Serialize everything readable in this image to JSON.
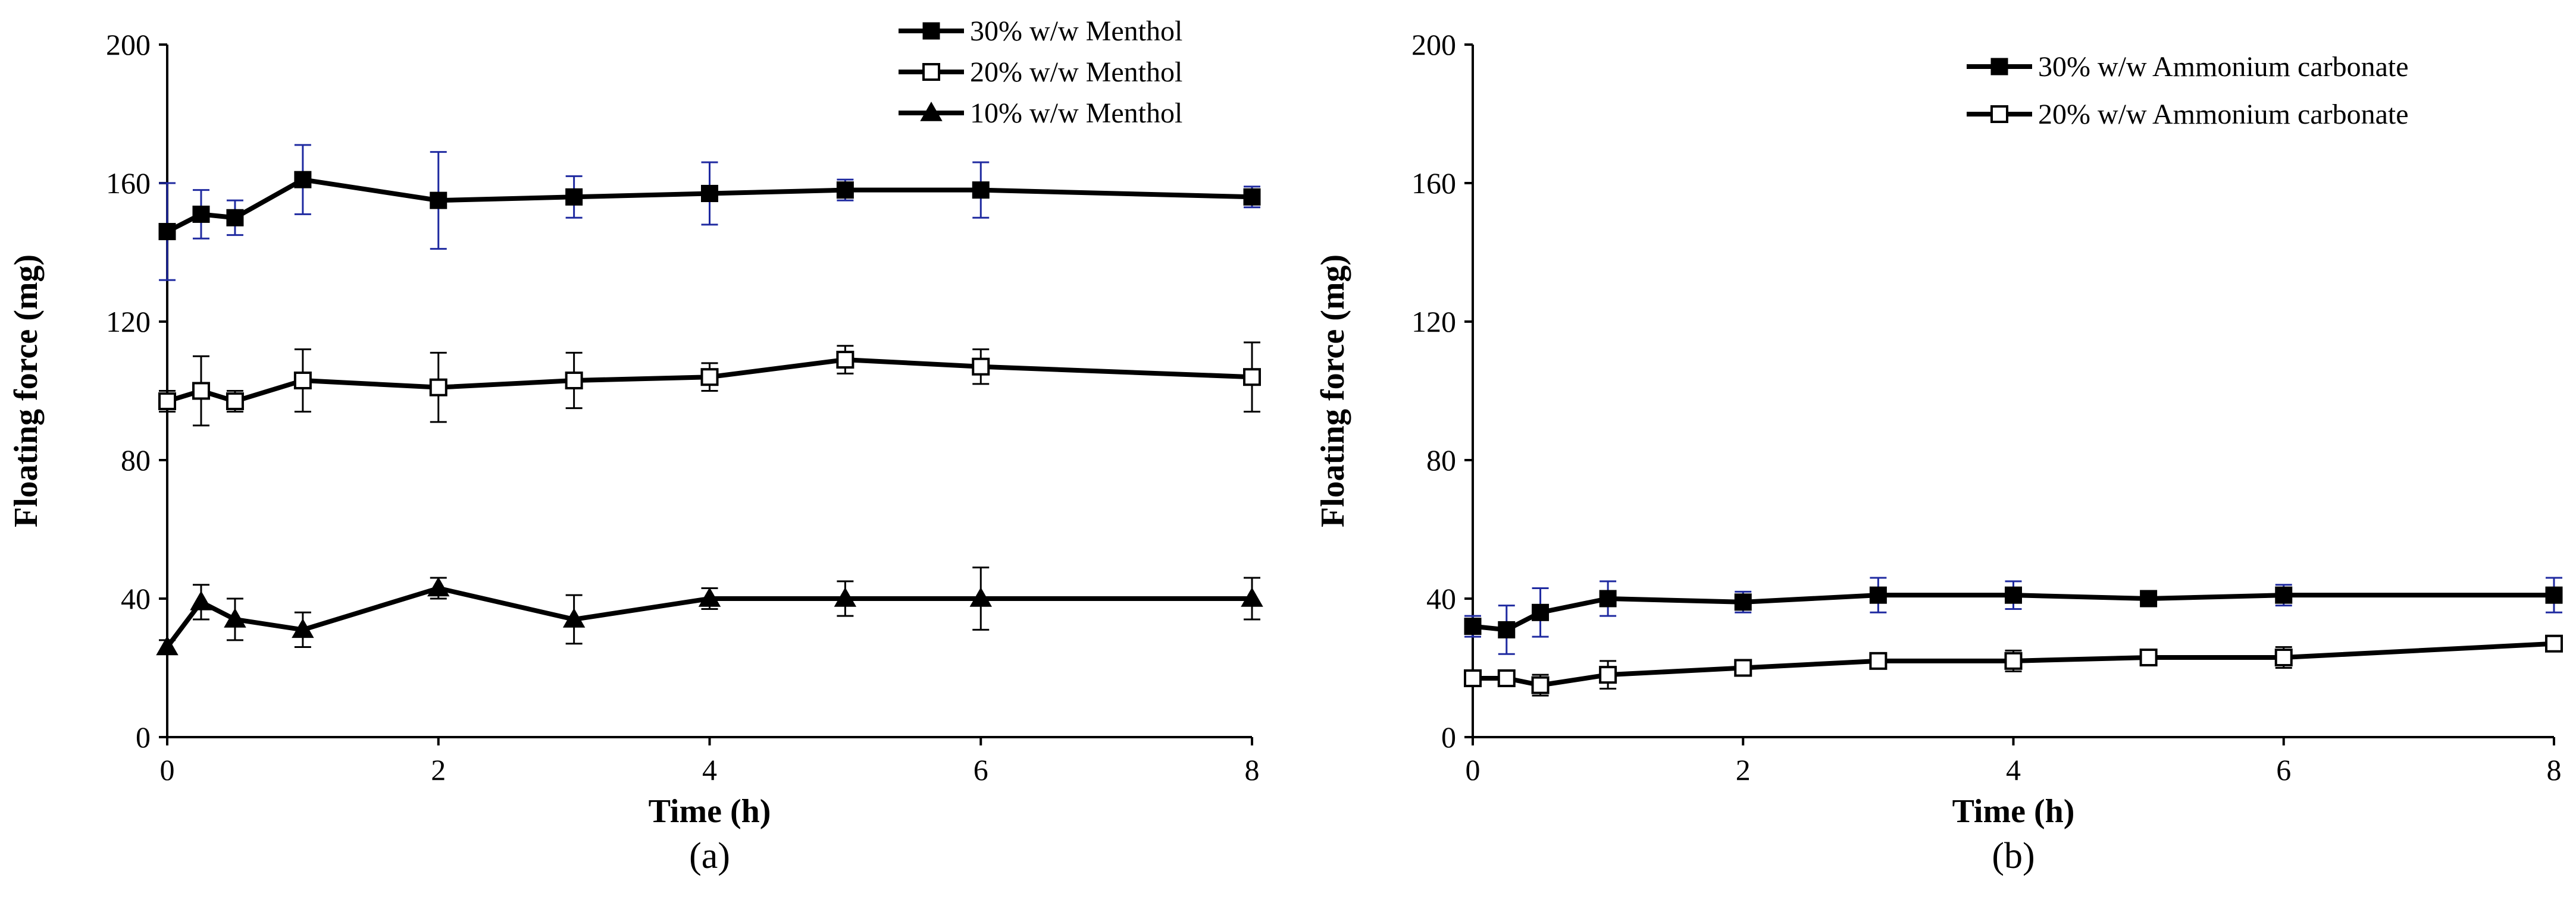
{
  "chart_data": [
    {
      "panel": "a",
      "panel_label": "(a)",
      "type": "line",
      "xlabel": "Time (h)",
      "ylabel": "Floating force (mg)",
      "xlim": [
        0,
        8
      ],
      "ylim": [
        0,
        200
      ],
      "xticks": [
        0,
        2,
        4,
        6,
        8
      ],
      "yticks": [
        0,
        40,
        80,
        120,
        160,
        200
      ],
      "legend_position": "top-right",
      "series": [
        {
          "name": "30% w/w Menthol",
          "marker": "filled-square",
          "error_color": "#1f2aa0",
          "x": [
            0,
            0.25,
            0.5,
            1,
            2,
            3,
            4,
            5,
            6,
            8
          ],
          "y": [
            146,
            151,
            150,
            161,
            155,
            156,
            157,
            158,
            158,
            156
          ],
          "err": [
            14,
            7,
            5,
            10,
            14,
            6,
            9,
            3,
            8,
            3
          ]
        },
        {
          "name": "20% w/w Menthol",
          "marker": "open-square",
          "error_color": "#000000",
          "x": [
            0,
            0.25,
            0.5,
            1,
            2,
            3,
            4,
            5,
            6,
            8
          ],
          "y": [
            97,
            100,
            97,
            103,
            101,
            103,
            104,
            109,
            107,
            104
          ],
          "err": [
            3,
            10,
            3,
            9,
            10,
            8,
            4,
            4,
            5,
            10
          ]
        },
        {
          "name": "10% w/w Menthol",
          "marker": "filled-triangle",
          "error_color": "#000000",
          "x": [
            0,
            0.25,
            0.5,
            1,
            2,
            3,
            4,
            5,
            6,
            8
          ],
          "y": [
            26,
            39,
            34,
            31,
            43,
            34,
            40,
            40,
            40,
            40
          ],
          "err": [
            2,
            5,
            6,
            5,
            3,
            7,
            3,
            5,
            9,
            6
          ]
        }
      ]
    },
    {
      "panel": "b",
      "panel_label": "(b)",
      "type": "line",
      "xlabel": "Time (h)",
      "ylabel": "Floating force (mg)",
      "xlim": [
        0,
        8
      ],
      "ylim": [
        0,
        200
      ],
      "xticks": [
        0,
        2,
        4,
        6,
        8
      ],
      "yticks": [
        0,
        40,
        80,
        120,
        160,
        200
      ],
      "legend_position": "top-right",
      "series": [
        {
          "name": "30% w/w Ammonium carbonate",
          "marker": "filled-square",
          "error_color": "#1f2aa0",
          "x": [
            0,
            0.25,
            0.5,
            1,
            2,
            3,
            4,
            5,
            6,
            8
          ],
          "y": [
            32,
            31,
            36,
            40,
            39,
            41,
            41,
            40,
            41,
            41
          ],
          "err": [
            3,
            7,
            7,
            5,
            3,
            5,
            4,
            2,
            3,
            5
          ]
        },
        {
          "name": "20% w/w Ammonium carbonate",
          "marker": "open-square",
          "error_color": "#000000",
          "x": [
            0,
            0.25,
            0.5,
            1,
            2,
            3,
            4,
            5,
            6,
            8
          ],
          "y": [
            17,
            17,
            15,
            18,
            20,
            22,
            22,
            23,
            23,
            27
          ],
          "err": [
            1,
            1,
            3,
            4,
            2,
            2,
            3,
            2,
            3,
            2
          ]
        }
      ]
    }
  ]
}
